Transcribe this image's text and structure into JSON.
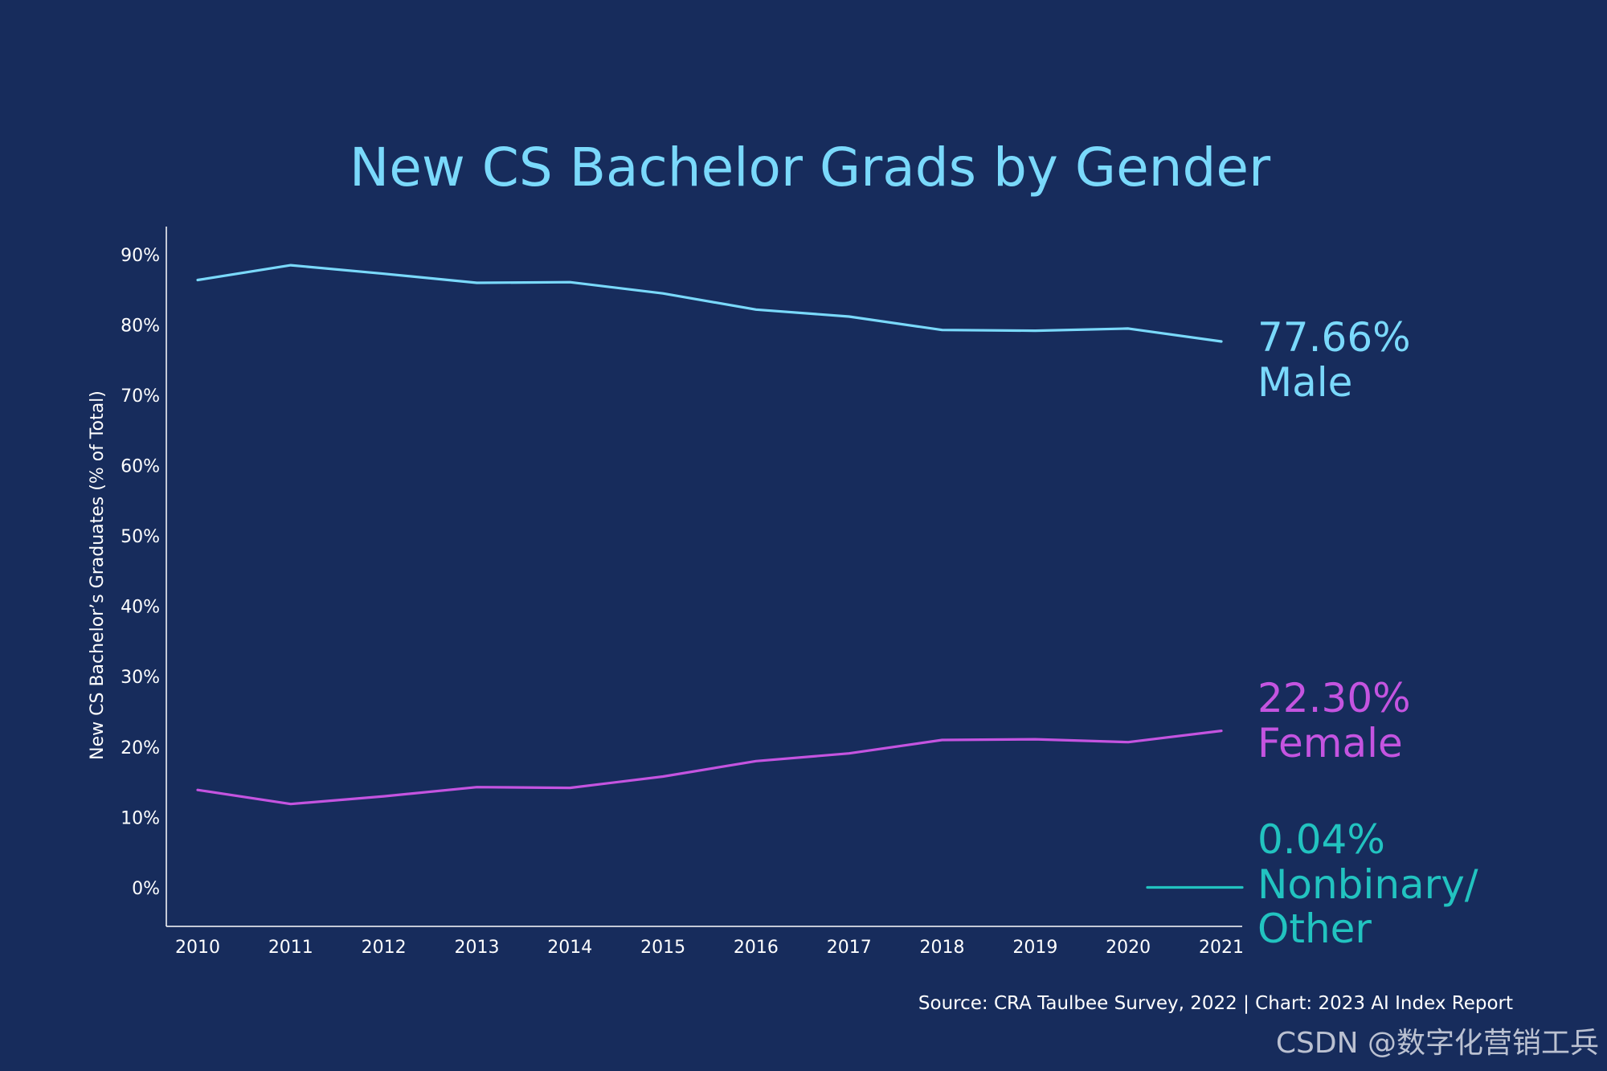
{
  "colors": {
    "background": "#172c5c",
    "title": "#7ad9fb",
    "axis": "#ffffff",
    "male": "#7ad9fb",
    "female": "#c454e0",
    "nonbinary": "#22c3c0"
  },
  "chart_data": {
    "type": "line",
    "title": "New CS Bachelor Grads by Gender",
    "ylabel": "New CS Bachelor’s Graduates (% of Total)",
    "xlabel": "",
    "ylim": [
      -5.5,
      94
    ],
    "y_ticks": [
      0,
      10,
      20,
      30,
      40,
      50,
      60,
      70,
      80,
      90
    ],
    "y_tick_labels": [
      "0%",
      "10%",
      "20%",
      "30%",
      "40%",
      "50%",
      "60%",
      "70%",
      "80%",
      "90%"
    ],
    "x": [
      "2010",
      "2011",
      "2012",
      "2013",
      "2014",
      "2015",
      "2016",
      "2017",
      "2018",
      "2019",
      "2020",
      "2021"
    ],
    "grid": false,
    "legend": "end-of-line labels, right",
    "series": [
      {
        "name": "Male",
        "end_label": "77.66%",
        "color_key": "male",
        "points": [
          {
            "x": "2010",
            "y": 86.4
          },
          {
            "x": "2011",
            "y": 88.5
          },
          {
            "x": "2012",
            "y": 87.3
          },
          {
            "x": "2013",
            "y": 86.0
          },
          {
            "x": "2014",
            "y": 86.1
          },
          {
            "x": "2015",
            "y": 84.5
          },
          {
            "x": "2016",
            "y": 82.2
          },
          {
            "x": "2017",
            "y": 81.2
          },
          {
            "x": "2018",
            "y": 79.3
          },
          {
            "x": "2019",
            "y": 79.2
          },
          {
            "x": "2020",
            "y": 79.5
          },
          {
            "x": "2021",
            "y": 77.66
          }
        ]
      },
      {
        "name": "Female",
        "end_label": "22.30%",
        "color_key": "female",
        "points": [
          {
            "x": "2010",
            "y": 13.9
          },
          {
            "x": "2011",
            "y": 11.9
          },
          {
            "x": "2012",
            "y": 13.0
          },
          {
            "x": "2013",
            "y": 14.3
          },
          {
            "x": "2014",
            "y": 14.2
          },
          {
            "x": "2015",
            "y": 15.8
          },
          {
            "x": "2016",
            "y": 18.0
          },
          {
            "x": "2017",
            "y": 19.1
          },
          {
            "x": "2018",
            "y": 21.0
          },
          {
            "x": "2019",
            "y": 21.1
          },
          {
            "x": "2020",
            "y": 20.7
          },
          {
            "x": "2021",
            "y": 22.3
          }
        ]
      },
      {
        "name": "Nonbinary/ Other",
        "name_lines": [
          "Nonbinary/",
          "Other"
        ],
        "end_label": "0.04%",
        "color_key": "nonbinary",
        "points": [
          {
            "x": "2020",
            "y": 0.04
          },
          {
            "x": "2021",
            "y": 0.04
          }
        ]
      }
    ]
  },
  "source": "Source: CRA Taulbee Survey, 2022 | Chart: 2023 AI Index Report",
  "watermark": "CSDN @数字化营销工兵"
}
